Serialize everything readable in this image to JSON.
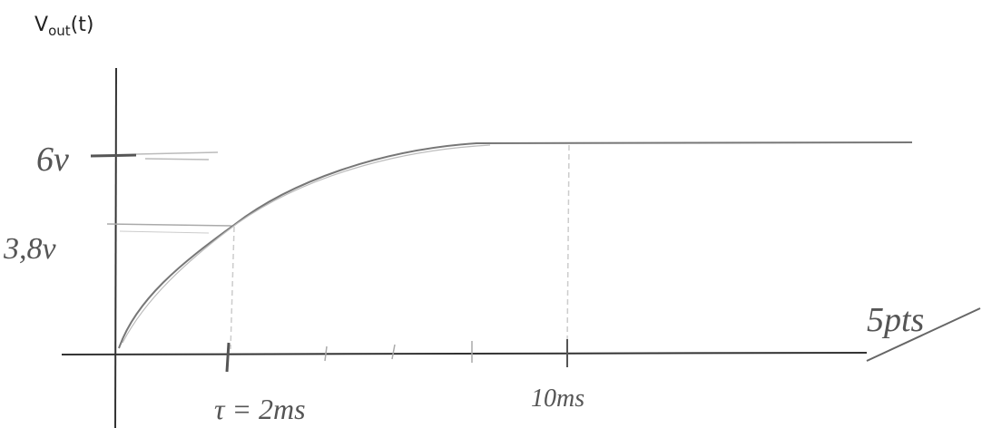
{
  "y_axis_label": {
    "main": "V",
    "sub": "out",
    "suffix": "(t)"
  },
  "y_markers": [
    "6v",
    "3,8v"
  ],
  "x_markers": [
    "τ = 2ms",
    "10ms"
  ],
  "score": "5pts"
}
